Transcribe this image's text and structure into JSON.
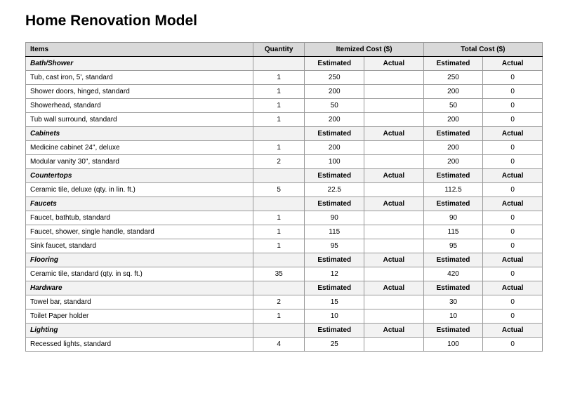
{
  "title": "Home Renovation Model",
  "headers": {
    "items": "Items",
    "quantity": "Quantity",
    "itemized_cost": "Itemized Cost ($)",
    "total_cost": "Total Cost ($)",
    "estimated": "Estimated",
    "actual": "Actual"
  },
  "sections": [
    {
      "name": "Bath/Shower",
      "show_subheader": false,
      "rows": [
        {
          "item": "Tub, cast iron, 5', standard",
          "qty": "1",
          "est1": "250",
          "act1": "",
          "est2": "250",
          "act2": "0"
        },
        {
          "item": "Shower doors, hinged, standard",
          "qty": "1",
          "est1": "200",
          "act1": "",
          "est2": "200",
          "act2": "0"
        },
        {
          "item": "Showerhead, standard",
          "qty": "1",
          "est1": "50",
          "act1": "",
          "est2": "50",
          "act2": "0"
        },
        {
          "item": "Tub wall surround, standard",
          "qty": "1",
          "est1": "200",
          "act1": "",
          "est2": "200",
          "act2": "0"
        }
      ]
    },
    {
      "name": "Cabinets",
      "show_subheader": true,
      "rows": [
        {
          "item": "Medicine cabinet 24\", deluxe",
          "qty": "1",
          "est1": "200",
          "act1": "",
          "est2": "200",
          "act2": "0"
        },
        {
          "item": "Modular vanity 30\", standard",
          "qty": "2",
          "est1": "100",
          "act1": "",
          "est2": "200",
          "act2": "0"
        }
      ]
    },
    {
      "name": "Countertops",
      "show_subheader": true,
      "rows": [
        {
          "item": "Ceramic tile, deluxe (qty. in lin. ft.)",
          "qty": "5",
          "est1": "22.5",
          "act1": "",
          "est2": "112.5",
          "act2": "0"
        }
      ]
    },
    {
      "name": "Faucets",
      "show_subheader": true,
      "rows": [
        {
          "item": "Faucet, bathtub, standard",
          "qty": "1",
          "est1": "90",
          "act1": "",
          "est2": "90",
          "act2": "0"
        },
        {
          "item": "Faucet, shower, single handle, standard",
          "qty": "1",
          "est1": "115",
          "act1": "",
          "est2": "115",
          "act2": "0"
        },
        {
          "item": "Sink faucet, standard",
          "qty": "1",
          "est1": "95",
          "act1": "",
          "est2": "95",
          "act2": "0"
        }
      ]
    },
    {
      "name": "Flooring",
      "show_subheader": true,
      "rows": [
        {
          "item": "Ceramic tile, standard (qty. in sq. ft.)",
          "qty": "35",
          "est1": "12",
          "act1": "",
          "est2": "420",
          "act2": "0"
        }
      ]
    },
    {
      "name": "Hardware",
      "show_subheader": true,
      "rows": [
        {
          "item": "Towel bar, standard",
          "qty": "2",
          "est1": "15",
          "act1": "",
          "est2": "30",
          "act2": "0"
        },
        {
          "item": "Toilet Paper holder",
          "qty": "1",
          "est1": "10",
          "act1": "",
          "est2": "10",
          "act2": "0"
        }
      ]
    },
    {
      "name": "Lighting",
      "show_subheader": true,
      "rows": [
        {
          "item": "Recessed lights, standard",
          "qty": "4",
          "est1": "25",
          "act1": "",
          "est2": "100",
          "act2": "0"
        }
      ]
    }
  ]
}
